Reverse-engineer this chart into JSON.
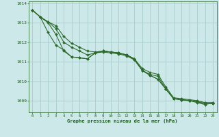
{
  "background_color": "#cce8e8",
  "grid_color": "#aacccc",
  "line_color": "#2d6b2d",
  "marker_color": "#2d6b2d",
  "xlabel": "Graphe pression niveau de la mer (hPa)",
  "xlabel_color": "#1a5c1a",
  "tick_color": "#1a5c1a",
  "xlim": [
    -0.5,
    23.5
  ],
  "ylim": [
    1008.4,
    1014.1
  ],
  "yticks": [
    1009,
    1010,
    1011,
    1012,
    1013,
    1014
  ],
  "xticks": [
    0,
    1,
    2,
    3,
    4,
    5,
    6,
    7,
    8,
    9,
    10,
    11,
    12,
    13,
    14,
    15,
    16,
    17,
    18,
    19,
    20,
    21,
    22,
    23
  ],
  "series": [
    [
      1013.65,
      1013.3,
      1013.05,
      1012.85,
      1012.3,
      1011.95,
      1011.75,
      1011.55,
      1011.5,
      1011.55,
      1011.5,
      1011.45,
      1011.35,
      1011.15,
      1010.65,
      1010.45,
      1010.35,
      1009.7,
      1009.15,
      1009.1,
      1009.05,
      1009.0,
      1008.9,
      1008.9
    ],
    [
      1013.65,
      1013.3,
      1013.05,
      1012.7,
      1012.0,
      1011.75,
      1011.55,
      1011.35,
      1011.45,
      1011.5,
      1011.45,
      1011.4,
      1011.3,
      1011.1,
      1010.55,
      1010.35,
      1010.25,
      1009.6,
      1009.1,
      1009.05,
      1009.0,
      1008.95,
      1008.85,
      1008.85
    ],
    [
      1013.65,
      1013.3,
      1013.0,
      1012.4,
      1011.55,
      1011.25,
      1011.2,
      1011.15,
      1011.45,
      1011.55,
      1011.5,
      1011.45,
      1011.35,
      1011.1,
      1010.55,
      1010.3,
      1010.1,
      1009.6,
      1009.1,
      1009.05,
      1009.0,
      1008.95,
      1008.85,
      1008.85
    ],
    [
      1013.65,
      1013.3,
      1012.5,
      1011.85,
      1011.6,
      1011.25,
      1011.2,
      1011.15,
      1011.45,
      1011.55,
      1011.5,
      1011.45,
      1011.35,
      1011.15,
      1010.55,
      1010.3,
      1010.1,
      1009.6,
      1009.1,
      1009.05,
      1009.0,
      1008.9,
      1008.8,
      1008.88
    ]
  ]
}
